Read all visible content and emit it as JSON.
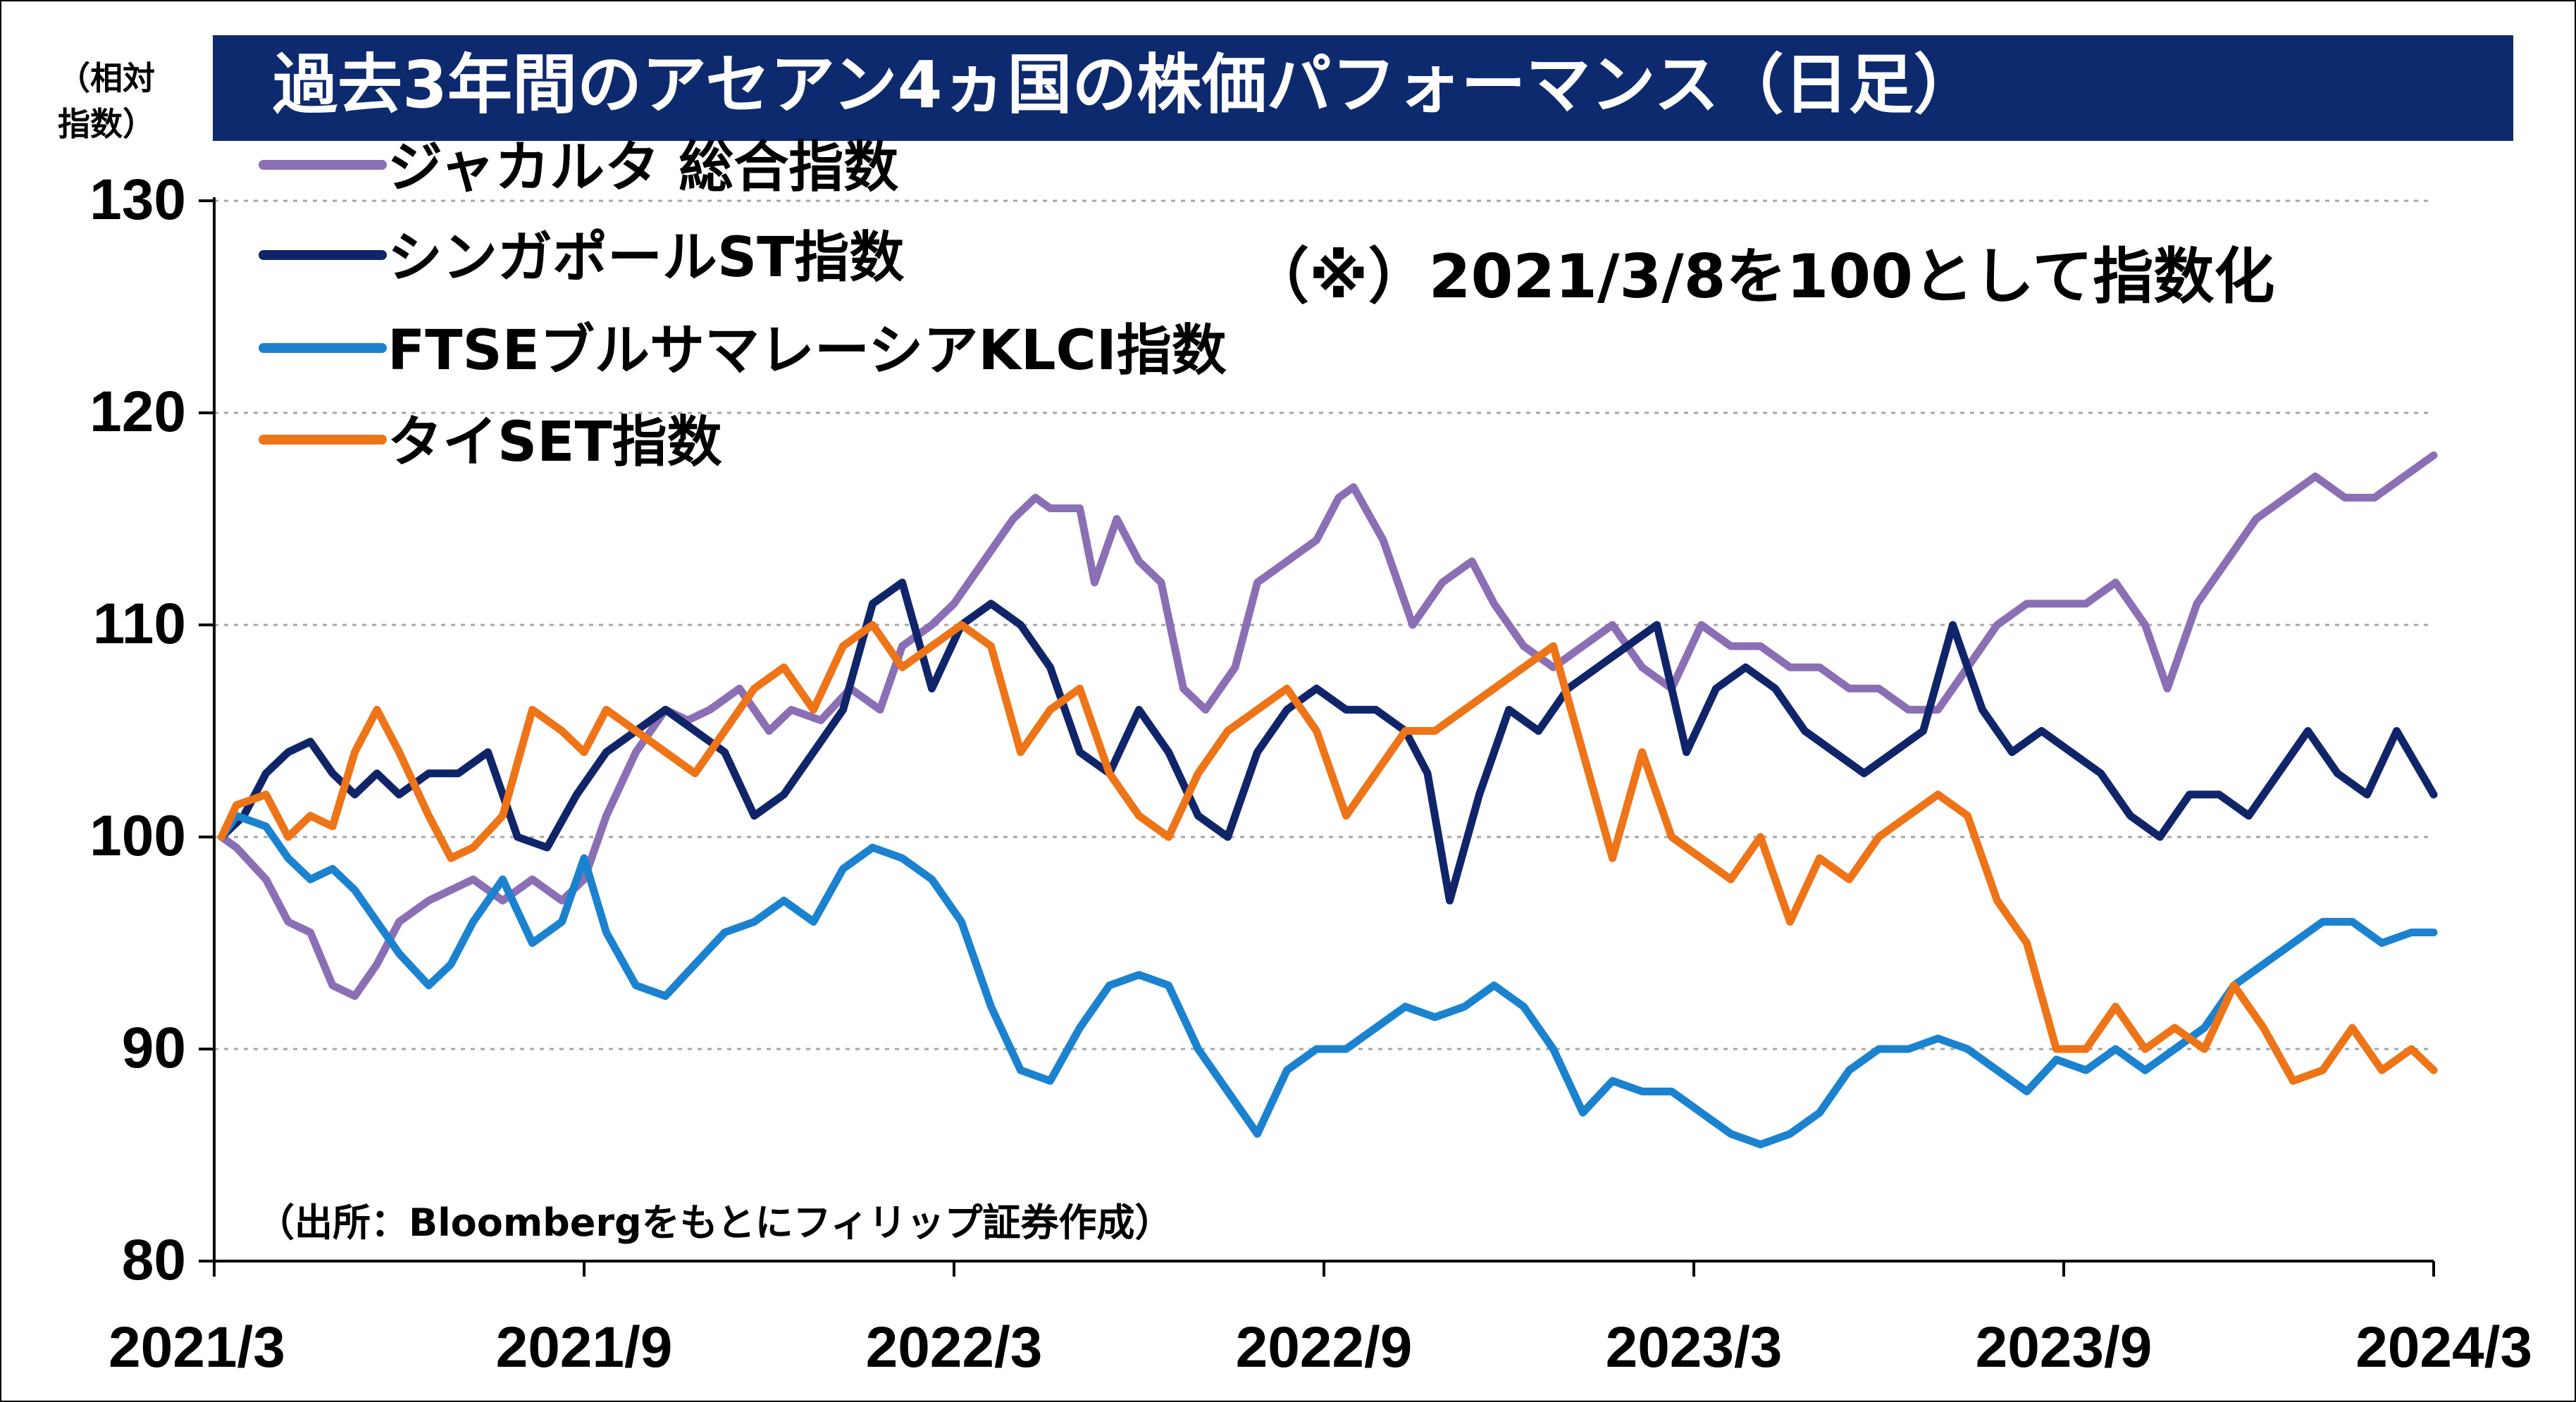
{
  "title": "過去3年間のアセアン4ヵ国の株価パフォーマンス（日足）",
  "unit_label": [
    "（相対",
    "指数）"
  ],
  "note": "（※）2021/3/8を100として指数化",
  "source": "（出所：Bloombergをもとにフィリップ証券作成）",
  "colors": {
    "title_bg": "#0e2a6e",
    "grid": "#a6a6a6",
    "jakarta": "#8b6fb5",
    "singapore": "#10246a",
    "malaysia": "#1b82cf",
    "thai": "#ee7418"
  },
  "chart_data": {
    "type": "line",
    "title": "過去3年間のアセアン4ヵ国の株価パフォーマンス（日足）",
    "xlabel": "",
    "ylabel": "（相対指数）",
    "ylim": [
      80,
      130
    ],
    "yticks": [
      130,
      120,
      110,
      100,
      90,
      80
    ],
    "xticks": [
      "2021/3",
      "2021/9",
      "2022/3",
      "2022/9",
      "2023/3",
      "2023/9",
      "2024/3"
    ],
    "xlim": [
      2021.17,
      2024.17
    ],
    "grid": true,
    "legend_position": "top-left",
    "series": [
      {
        "name": "ジャカルタ 総合指数",
        "x": [
          2021.18,
          2021.2,
          2021.24,
          2021.27,
          2021.3,
          2021.33,
          2021.36,
          2021.39,
          2021.42,
          2021.46,
          2021.49,
          2021.52,
          2021.56,
          2021.6,
          2021.64,
          2021.67,
          2021.7,
          2021.74,
          2021.78,
          2021.81,
          2021.84,
          2021.88,
          2021.92,
          2021.95,
          2021.99,
          2022.03,
          2022.07,
          2022.1,
          2022.14,
          2022.17,
          2022.21,
          2022.25,
          2022.28,
          2022.3,
          2022.34,
          2022.36,
          2022.39,
          2022.42,
          2022.45,
          2022.48,
          2022.51,
          2022.55,
          2022.58,
          2022.62,
          2022.66,
          2022.69,
          2022.71,
          2022.75,
          2022.79,
          2022.83,
          2022.87,
          2022.9,
          2022.94,
          2022.98,
          2023.02,
          2023.06,
          2023.1,
          2023.14,
          2023.18,
          2023.22,
          2023.26,
          2023.3,
          2023.34,
          2023.38,
          2023.42,
          2023.46,
          2023.5,
          2023.54,
          2023.58,
          2023.62,
          2023.66,
          2023.7,
          2023.74,
          2023.78,
          2023.81,
          2023.85,
          2023.89,
          2023.93,
          2023.97,
          2024.01,
          2024.05,
          2024.09,
          2024.13,
          2024.17
        ],
        "values": [
          100,
          99.5,
          98,
          96,
          95.5,
          93,
          92.5,
          94,
          96,
          97,
          97.5,
          98,
          97,
          98,
          97,
          98,
          101,
          104,
          106,
          105.5,
          106,
          107,
          105,
          106,
          105.5,
          107,
          106,
          109,
          110,
          111,
          113,
          115,
          116,
          115.5,
          115.5,
          112,
          115,
          113,
          112,
          107,
          106,
          108,
          112,
          113,
          114,
          116,
          116.5,
          114,
          110,
          112,
          113,
          111,
          109,
          108,
          109,
          110,
          108,
          107,
          110,
          109,
          109,
          108,
          108,
          107,
          107,
          106,
          106,
          108,
          110,
          111,
          111,
          111,
          112,
          110,
          107,
          111,
          113,
          115,
          116,
          117,
          116,
          116,
          117,
          118
        ]
      },
      {
        "name": "シンガポールST指数",
        "x": [
          2021.18,
          2021.21,
          2021.24,
          2021.27,
          2021.3,
          2021.33,
          2021.36,
          2021.39,
          2021.42,
          2021.46,
          2021.5,
          2021.54,
          2021.58,
          2021.62,
          2021.66,
          2021.7,
          2021.74,
          2021.78,
          2021.82,
          2021.86,
          2021.9,
          2021.94,
          2021.98,
          2022.02,
          2022.06,
          2022.1,
          2022.14,
          2022.18,
          2022.22,
          2022.26,
          2022.3,
          2022.34,
          2022.38,
          2022.42,
          2022.46,
          2022.5,
          2022.54,
          2022.58,
          2022.62,
          2022.66,
          2022.7,
          2022.74,
          2022.78,
          2022.81,
          2022.84,
          2022.88,
          2022.92,
          2022.96,
          2023.0,
          2023.04,
          2023.08,
          2023.12,
          2023.16,
          2023.2,
          2023.24,
          2023.28,
          2023.32,
          2023.36,
          2023.4,
          2023.44,
          2023.48,
          2023.52,
          2023.56,
          2023.6,
          2023.64,
          2023.68,
          2023.72,
          2023.76,
          2023.8,
          2023.84,
          2023.88,
          2023.92,
          2023.96,
          2024.0,
          2024.04,
          2024.08,
          2024.12,
          2024.17
        ],
        "values": [
          100,
          101,
          103,
          104,
          104.5,
          103,
          102,
          103,
          102,
          103,
          103,
          104,
          100,
          99.5,
          102,
          104,
          105,
          106,
          105,
          104,
          101,
          102,
          104,
          106,
          111,
          112,
          107,
          110,
          111,
          110,
          108,
          104,
          103,
          106,
          104,
          101,
          100,
          104,
          106,
          107,
          106,
          106,
          105,
          103,
          97,
          102,
          106,
          105,
          107,
          108,
          109,
          110,
          104,
          107,
          108,
          107,
          105,
          104,
          103,
          104,
          105,
          110,
          106,
          104,
          105,
          104,
          103,
          101,
          100,
          102,
          102,
          101,
          103,
          105,
          103,
          102,
          105,
          102
        ]
      },
      {
        "name": "FTSEブルサマレーシアKLCI指数",
        "x": [
          2021.18,
          2021.2,
          2021.24,
          2021.27,
          2021.3,
          2021.33,
          2021.36,
          2021.39,
          2021.42,
          2021.46,
          2021.49,
          2021.52,
          2021.56,
          2021.6,
          2021.64,
          2021.67,
          2021.7,
          2021.74,
          2021.78,
          2021.82,
          2021.86,
          2021.9,
          2021.94,
          2021.98,
          2022.02,
          2022.06,
          2022.1,
          2022.14,
          2022.18,
          2022.22,
          2022.26,
          2022.3,
          2022.34,
          2022.38,
          2022.42,
          2022.46,
          2022.5,
          2022.54,
          2022.58,
          2022.62,
          2022.66,
          2022.7,
          2022.74,
          2022.78,
          2022.82,
          2022.86,
          2022.9,
          2022.94,
          2022.98,
          2023.02,
          2023.06,
          2023.1,
          2023.14,
          2023.18,
          2023.22,
          2023.26,
          2023.3,
          2023.34,
          2023.38,
          2023.42,
          2023.46,
          2023.5,
          2023.54,
          2023.58,
          2023.62,
          2023.66,
          2023.7,
          2023.74,
          2023.78,
          2023.82,
          2023.86,
          2023.9,
          2023.94,
          2023.98,
          2024.02,
          2024.06,
          2024.1,
          2024.14,
          2024.17
        ],
        "values": [
          100,
          101,
          100.5,
          99,
          98,
          98.5,
          97.5,
          96,
          94.5,
          93,
          94,
          96,
          98,
          95,
          96,
          99,
          95.5,
          93,
          92.5,
          94,
          95.5,
          96,
          97,
          96,
          98.5,
          99.5,
          99,
          98,
          96,
          92,
          89,
          88.5,
          91,
          93,
          93.5,
          93,
          90,
          88,
          86,
          89,
          90,
          90,
          91,
          92,
          91.5,
          92,
          93,
          92,
          90,
          87,
          88.5,
          88,
          88,
          87,
          86,
          85.5,
          86,
          87,
          89,
          90,
          90,
          90.5,
          90,
          89,
          88,
          89.5,
          89,
          90,
          89,
          90,
          91,
          93,
          94,
          95,
          96,
          96,
          95,
          95.5,
          95.5
        ]
      },
      {
        "name": "タイSET指数",
        "x": [
          2021.18,
          2021.2,
          2021.24,
          2021.27,
          2021.3,
          2021.33,
          2021.36,
          2021.39,
          2021.42,
          2021.46,
          2021.49,
          2021.52,
          2021.56,
          2021.6,
          2021.64,
          2021.67,
          2021.7,
          2021.74,
          2021.78,
          2021.82,
          2021.86,
          2021.9,
          2021.94,
          2021.98,
          2022.02,
          2022.06,
          2022.1,
          2022.14,
          2022.18,
          2022.22,
          2022.26,
          2022.3,
          2022.34,
          2022.38,
          2022.42,
          2022.46,
          2022.5,
          2022.54,
          2022.58,
          2022.62,
          2022.66,
          2022.7,
          2022.74,
          2022.78,
          2022.82,
          2022.86,
          2022.9,
          2022.94,
          2022.98,
          2023.02,
          2023.06,
          2023.1,
          2023.14,
          2023.18,
          2023.22,
          2023.26,
          2023.3,
          2023.34,
          2023.38,
          2023.42,
          2023.46,
          2023.5,
          2023.54,
          2023.58,
          2023.62,
          2023.66,
          2023.7,
          2023.74,
          2023.78,
          2023.82,
          2023.86,
          2023.9,
          2023.94,
          2023.98,
          2024.02,
          2024.06,
          2024.1,
          2024.14,
          2024.17
        ],
        "values": [
          100,
          101.5,
          102,
          100,
          101,
          100.5,
          104,
          106,
          104,
          101,
          99,
          99.5,
          101,
          106,
          105,
          104,
          106,
          105,
          104,
          103,
          105,
          107,
          108,
          106,
          109,
          110,
          108,
          109,
          110,
          109,
          104,
          106,
          107,
          103,
          101,
          100,
          103,
          105,
          106,
          107,
          105,
          101,
          103,
          105,
          105,
          106,
          107,
          108,
          109,
          104,
          99,
          104,
          100,
          99,
          98,
          100,
          96,
          99,
          98,
          100,
          101,
          102,
          101,
          97,
          95,
          90,
          90,
          92,
          90,
          91,
          90,
          93,
          91,
          88.5,
          89,
          91,
          89,
          90,
          89
        ]
      }
    ]
  }
}
